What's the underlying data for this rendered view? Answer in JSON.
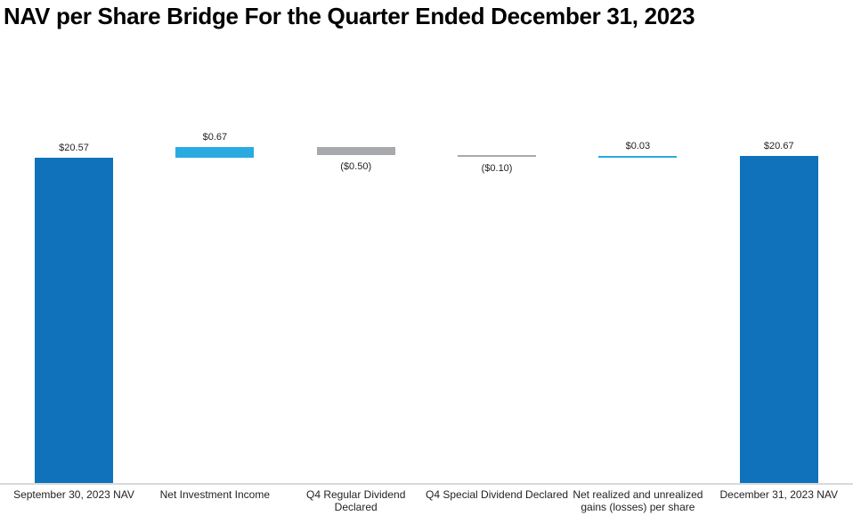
{
  "title": "NAV per Share Bridge For the Quarter Ended December 31, 2023",
  "colors": {
    "total_bar": "#0F72BA",
    "increase_bar": "#29ABE2",
    "decrease_bar": "#A7A9AC",
    "axis_line": "#D9D9D9",
    "label_text": "#231F20"
  },
  "chart_data": {
    "type": "bar",
    "subtype": "waterfall-bridge",
    "title": "NAV per Share Bridge For the Quarter Ended December 31, 2023",
    "xlabel": "",
    "ylabel": "",
    "ylim": [
      0,
      21.24
    ],
    "grid": false,
    "legend": "none",
    "axis_baseline_value": 0,
    "categories": [
      "September 30, 2023 NAV",
      "Net Investment Income",
      "Q4 Regular Dividend Declared",
      "Q4 Special Dividend Declared",
      "Net realized and unrealized gains (losses) per share",
      "December 31, 2023 NAV"
    ],
    "bars": [
      {
        "label_lines": [
          "September 30, 2023 NAV"
        ],
        "kind": "total",
        "value": 20.57,
        "cumulative_start": 0,
        "cumulative_end": 20.57,
        "display_value": "$20.57",
        "value_label_position": "above",
        "color": "#0F72BA"
      },
      {
        "label_lines": [
          "Net Investment Income"
        ],
        "kind": "delta",
        "value": 0.67,
        "cumulative_start": 20.57,
        "cumulative_end": 21.24,
        "display_value": "$0.67",
        "value_label_position": "above",
        "color": "#29ABE2"
      },
      {
        "label_lines": [
          "Q4 Regular Dividend",
          "Declared"
        ],
        "kind": "delta",
        "value": -0.5,
        "cumulative_start": 21.24,
        "cumulative_end": 20.74,
        "display_value": "($0.50)",
        "value_label_position": "below",
        "color": "#A7A9AC"
      },
      {
        "label_lines": [
          "Q4 Special Dividend Declared"
        ],
        "kind": "delta",
        "value": -0.1,
        "cumulative_start": 20.74,
        "cumulative_end": 20.64,
        "display_value": "($0.10)",
        "value_label_position": "below",
        "color": "#A7A9AC"
      },
      {
        "label_lines": [
          "Net realized and unrealized",
          "gains (losses) per share"
        ],
        "kind": "delta",
        "value": 0.03,
        "cumulative_start": 20.64,
        "cumulative_end": 20.67,
        "display_value": "$0.03",
        "value_label_position": "above",
        "color": "#29ABE2"
      },
      {
        "label_lines": [
          "December 31, 2023 NAV"
        ],
        "kind": "total",
        "value": 20.67,
        "cumulative_start": 0,
        "cumulative_end": 20.67,
        "display_value": "$20.67",
        "value_label_position": "above",
        "color": "#0F72BA"
      }
    ]
  }
}
